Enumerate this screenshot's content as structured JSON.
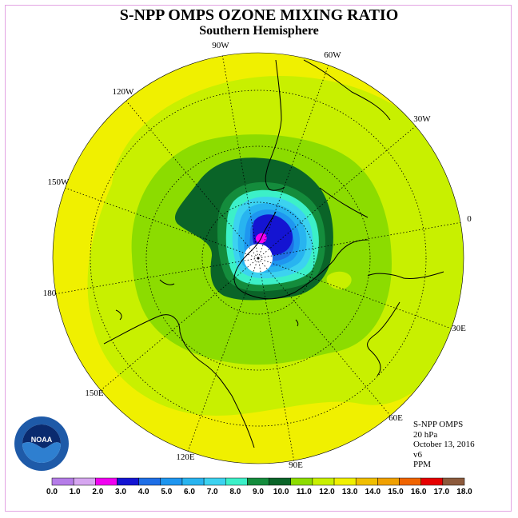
{
  "title": "S-NPP OMPS OZONE MIXING RATIO",
  "subtitle": "Southern Hemisphere",
  "longitude_labels": [
    "90W",
    "60W",
    "30W",
    "0",
    "30E",
    "60E",
    "90E",
    "120E",
    "150E",
    "180",
    "150W",
    "120W"
  ],
  "info": {
    "instrument": "S-NPP OMPS",
    "level": "20 hPa",
    "date": "October 13, 2016",
    "version": "v6",
    "units": "PPM"
  },
  "logo": {
    "text": "NOAA",
    "ring_text": "NATIONAL OCEANIC AND ATMOSPHERIC ADMINISTRATION · U.S. DEPARTMENT OF COMMERCE"
  },
  "colorbar": {
    "ticks": [
      "0.0",
      "1.0",
      "2.0",
      "3.0",
      "4.0",
      "5.0",
      "6.0",
      "7.0",
      "8.0",
      "9.0",
      "10.0",
      "11.0",
      "12.0",
      "13.0",
      "14.0",
      "15.0",
      "16.0",
      "17.0",
      "18.0"
    ],
    "colors": [
      "#b57ce8",
      "#d6a6f0",
      "#f000f0",
      "#1414d2",
      "#1e6ee6",
      "#1e96f0",
      "#28b4f0",
      "#3cd2f0",
      "#3cf0c8",
      "#148c3c",
      "#0a6428",
      "#8cdc00",
      "#c8f000",
      "#f0f000",
      "#f0be00",
      "#f0a000",
      "#f06400",
      "#e60000",
      "#8c5a3c"
    ]
  }
}
